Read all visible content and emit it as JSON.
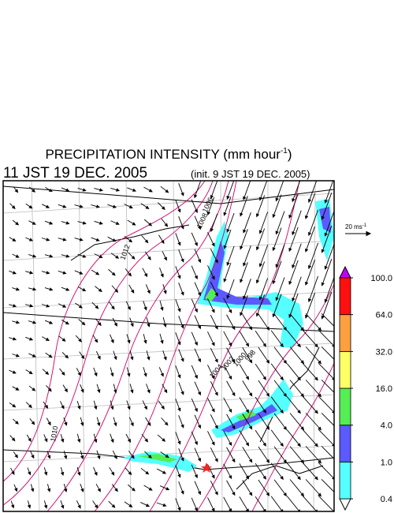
{
  "header": {
    "title": {
      "text": "PRECIPITATION INTENSITY (mm hour",
      "superscript": "-1",
      "suffix": ")"
    },
    "valid_time": "11 JST 19 DEC. 2005",
    "init_time": "(init. 9 JST 19 DEC. 2005)"
  },
  "wind_scale": {
    "text": "20 ms",
    "superscript": "-1"
  },
  "colorbar": {
    "levels": [
      {
        "value": 0.4,
        "label": "0.4"
      },
      {
        "value": 1,
        "label": "1.0"
      },
      {
        "value": 4,
        "label": "4.0"
      },
      {
        "value": 16,
        "label": "16.0"
      },
      {
        "value": 32,
        "label": "32.0"
      },
      {
        "value": 64,
        "label": "64.0"
      },
      {
        "value": 100,
        "label": "100.0"
      }
    ],
    "colors": [
      "#55ffff",
      "#5a5aff",
      "#55ee55",
      "#ffff66",
      "#ffa040",
      "#ff1010"
    ],
    "under_color": "#ffffff",
    "over_color": "#c000ff"
  },
  "map": {
    "contour_labels": [
      "1012",
      "1010",
      "1008",
      "1006",
      "1004",
      "1002",
      "1000",
      "998"
    ]
  }
}
